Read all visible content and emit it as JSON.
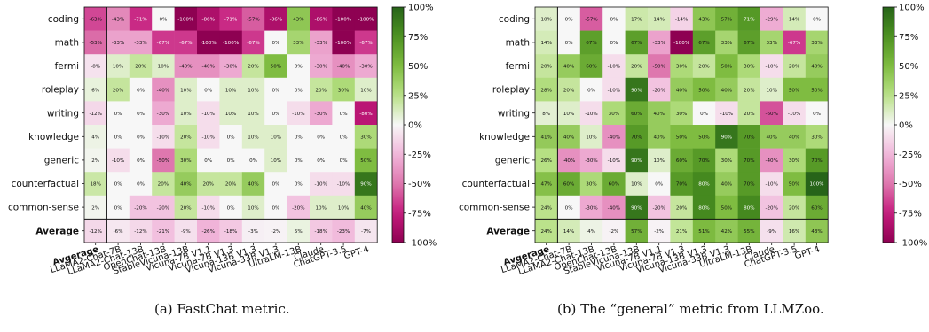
{
  "chart_data": [
    {
      "type": "heatmap",
      "caption": "(a) FastChat metric.",
      "rows": [
        "coding",
        "math",
        "fermi",
        "roleplay",
        "writing",
        "knowledge",
        "generic",
        "counterfactual",
        "common-sense",
        "Average"
      ],
      "columns": [
        "Avgerage",
        "LLaMA2-Chat-7B",
        "LLaMA2-Chat-13B",
        "OpenChat-13B",
        "StableVicuna-13B",
        "Vicuna-7B V1.1",
        "Vicuna-7B V1.3",
        "Vicuna-13B V1.3",
        "Vicuna-33B V1.3",
        "UltraLM-13B",
        "Claude",
        "ChatGPT-3.5",
        "GPT-4"
      ],
      "values": [
        [
          -63,
          -43,
          -71,
          0,
          -100,
          -86,
          -71,
          -57,
          -86,
          43,
          -86,
          -100,
          -100
        ],
        [
          -53,
          -33,
          -33,
          -67,
          -67,
          -100,
          -100,
          -67,
          0,
          33,
          -33,
          -100,
          -67
        ],
        [
          -8,
          10,
          20,
          10,
          -40,
          -40,
          -30,
          20,
          50,
          0,
          -30,
          -40,
          -30
        ],
        [
          6,
          20,
          0,
          -40,
          10,
          0,
          10,
          10,
          0,
          0,
          20,
          30,
          10
        ],
        [
          -12,
          0,
          0,
          -30,
          10,
          -10,
          10,
          10,
          0,
          -10,
          -30,
          0,
          -80
        ],
        [
          4,
          0,
          0,
          -10,
          20,
          -10,
          0,
          10,
          10,
          0,
          0,
          0,
          30
        ],
        [
          2,
          -10,
          0,
          -50,
          30,
          0,
          0,
          0,
          10,
          0,
          0,
          0,
          50
        ],
        [
          18,
          0,
          0,
          20,
          40,
          20,
          20,
          40,
          0,
          0,
          -10,
          -10,
          90
        ],
        [
          2,
          0,
          -20,
          -20,
          20,
          -10,
          0,
          10,
          0,
          -20,
          10,
          10,
          40
        ],
        [
          -12,
          -6,
          -12,
          -21,
          -9,
          -26,
          -18,
          -3,
          -2,
          5,
          -18,
          -23,
          -7
        ]
      ],
      "colorbar": {
        "ticks": [
          "100%",
          "75%",
          "50%",
          "25%",
          "0%",
          "-25%",
          "-50%",
          "-75%",
          "-100%"
        ],
        "range": [
          -100,
          100
        ],
        "colormap": "PiYG"
      }
    },
    {
      "type": "heatmap",
      "caption": "(b) The “general” metric from LLMZoo.",
      "rows": [
        "coding",
        "math",
        "fermi",
        "roleplay",
        "writing",
        "knowledge",
        "generic",
        "counterfactual",
        "common-sense",
        "Average"
      ],
      "columns": [
        "Avgerage",
        "LLaMA2-Chat-7B",
        "LLaMA2-Chat-13B",
        "OpenChat-13B",
        "StableVicuna-13B",
        "Vicuna-7B V1.1",
        "Vicuna-7B V1.3",
        "Vicuna-13B V1.3",
        "Vicuna-33B V1.3",
        "UltraLM-13B",
        "Claude",
        "ChatGPT-3.5",
        "GPT-4"
      ],
      "values": [
        [
          10,
          0,
          -57,
          0,
          17,
          14,
          -14,
          43,
          57,
          71,
          -29,
          14,
          0
        ],
        [
          14,
          0,
          67,
          0,
          67,
          -33,
          -100,
          67,
          33,
          67,
          33,
          -67,
          33
        ],
        [
          20,
          40,
          60,
          -10,
          20,
          -50,
          30,
          20,
          50,
          30,
          -10,
          20,
          40
        ],
        [
          28,
          20,
          0,
          -10,
          90,
          -20,
          40,
          50,
          40,
          20,
          10,
          50,
          50
        ],
        [
          8,
          10,
          -10,
          30,
          60,
          40,
          30,
          0,
          -10,
          20,
          -60,
          -10,
          0
        ],
        [
          41,
          40,
          10,
          -40,
          70,
          40,
          50,
          50,
          90,
          70,
          40,
          40,
          30
        ],
        [
          26,
          -40,
          -30,
          -10,
          90,
          10,
          60,
          70,
          30,
          70,
          -40,
          30,
          70
        ],
        [
          47,
          60,
          30,
          60,
          10,
          0,
          70,
          80,
          40,
          70,
          -10,
          50,
          100
        ],
        [
          24,
          0,
          -30,
          -40,
          90,
          -20,
          20,
          80,
          50,
          80,
          -20,
          20,
          60
        ],
        [
          24,
          14,
          4,
          -2,
          57,
          -2,
          21,
          51,
          42,
          55,
          -9,
          16,
          43
        ]
      ],
      "colorbar": {
        "ticks": [
          "100%",
          "75%",
          "50%",
          "25%",
          "0%",
          "-25%",
          "-50%",
          "-75%",
          "-100%"
        ],
        "range": [
          -100,
          100
        ],
        "colormap": "PiYG"
      }
    }
  ]
}
